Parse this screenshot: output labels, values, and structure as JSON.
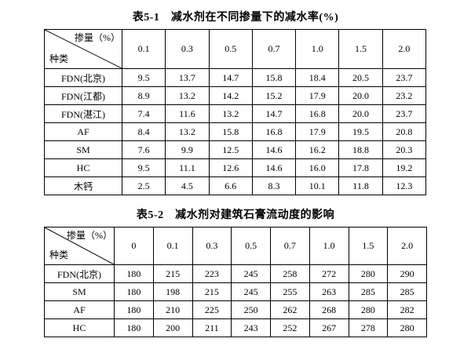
{
  "page": {
    "background": "#ffffff",
    "text_color": "#000000",
    "border_color": "#000000"
  },
  "tables": [
    {
      "title": "表5-1　减水剂在不同掺量下的减水率(%)",
      "corner": {
        "top_right": "掺量（%）",
        "bottom_left": "种类"
      },
      "columns": [
        "0.1",
        "0.3",
        "0.5",
        "0.7",
        "1.0",
        "1.5",
        "2.0"
      ],
      "rows": [
        {
          "label": "FDN(北京)",
          "values": [
            "9.5",
            "13.7",
            "14.7",
            "15.8",
            "18.4",
            "20.5",
            "23.7"
          ]
        },
        {
          "label": "FDN(江都)",
          "values": [
            "8.9",
            "13.2",
            "14.2",
            "15.2",
            "17.9",
            "20.0",
            "23.2"
          ]
        },
        {
          "label": "FDN(湛江)",
          "values": [
            "7.4",
            "11.6",
            "13.2",
            "14.7",
            "16.8",
            "20.0",
            "23.7"
          ]
        },
        {
          "label": "AF",
          "values": [
            "8.4",
            "13.2",
            "15.8",
            "16.8",
            "17.9",
            "19.5",
            "20.8"
          ]
        },
        {
          "label": "SM",
          "values": [
            "7.6",
            "9.9",
            "12.5",
            "14.6",
            "16.2",
            "18.8",
            "20.3"
          ]
        },
        {
          "label": "HC",
          "values": [
            "9.5",
            "11.1",
            "12.6",
            "14.6",
            "16.0",
            "17.8",
            "19.2"
          ]
        },
        {
          "label": "木钙",
          "values": [
            "2.5",
            "4.5",
            "6.6",
            "8.3",
            "10.1",
            "11.8",
            "12.3"
          ]
        }
      ]
    },
    {
      "title": "表5-2　减水剂对建筑石膏流动度的影响",
      "corner": {
        "top_right": "掺量（%）",
        "bottom_left": "种类"
      },
      "columns": [
        "0",
        "0.1",
        "0.3",
        "0.5",
        "0.7",
        "1.0",
        "1.5",
        "2.0"
      ],
      "rows": [
        {
          "label": "FDN(北京)",
          "values": [
            "180",
            "215",
            "223",
            "245",
            "258",
            "272",
            "280",
            "290"
          ]
        },
        {
          "label": "SM",
          "values": [
            "180",
            "198",
            "215",
            "245",
            "255",
            "263",
            "285",
            "285"
          ]
        },
        {
          "label": "AF",
          "values": [
            "180",
            "210",
            "225",
            "250",
            "262",
            "268",
            "280",
            "282"
          ]
        },
        {
          "label": "HC",
          "values": [
            "180",
            "200",
            "211",
            "243",
            "252",
            "267",
            "278",
            "280"
          ]
        }
      ]
    }
  ]
}
